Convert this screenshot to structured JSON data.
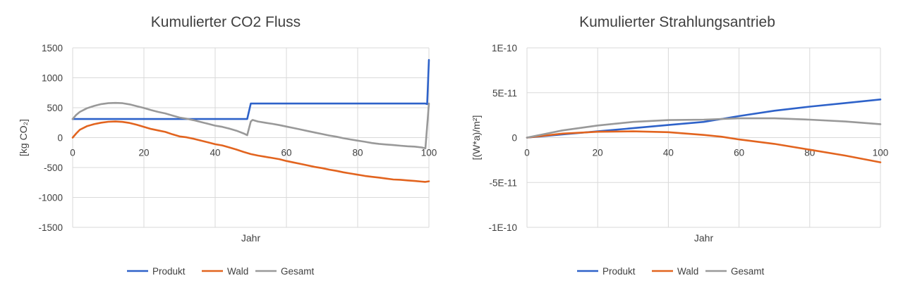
{
  "chart_data": [
    {
      "type": "line",
      "title": "Kumulierter CO2 Fluss",
      "xlabel": "Jahr",
      "ylabel": "[kg CO₂]",
      "xlim": [
        0,
        100
      ],
      "ylim": [
        -1500,
        1500
      ],
      "x_ticks": [
        0,
        20,
        40,
        60,
        80,
        100
      ],
      "x_tick_labels": [
        "0",
        "20",
        "40",
        "60",
        "80",
        "100"
      ],
      "y_ticks": [
        1500,
        1000,
        500,
        0,
        -500,
        -1000,
        -1500
      ],
      "y_tick_labels": [
        "1500",
        "1000",
        "500",
        "0",
        "-500",
        "-1000",
        "-1500"
      ],
      "grid": true,
      "legend_position": "bottom",
      "series": [
        {
          "name": "Produkt",
          "color": "#2e62c9",
          "points": [
            [
              0,
              310
            ],
            [
              48.5,
              310
            ],
            [
              49,
              310
            ],
            [
              50,
              570
            ],
            [
              99,
              570
            ],
            [
              99.5,
              560
            ],
            [
              100,
              1300
            ]
          ]
        },
        {
          "name": "Wald",
          "color": "#e2641f",
          "points": [
            [
              0,
              0
            ],
            [
              1,
              70
            ],
            [
              2,
              130
            ],
            [
              4,
              190
            ],
            [
              6,
              225
            ],
            [
              8,
              250
            ],
            [
              10,
              265
            ],
            [
              12,
              270
            ],
            [
              14,
              262
            ],
            [
              16,
              245
            ],
            [
              18,
              215
            ],
            [
              20,
              180
            ],
            [
              22,
              145
            ],
            [
              24,
              120
            ],
            [
              26,
              95
            ],
            [
              28,
              55
            ],
            [
              30,
              20
            ],
            [
              32,
              5
            ],
            [
              34,
              -20
            ],
            [
              36,
              -50
            ],
            [
              38,
              -80
            ],
            [
              40,
              -110
            ],
            [
              42,
              -130
            ],
            [
              44,
              -165
            ],
            [
              46,
              -200
            ],
            [
              48,
              -240
            ],
            [
              50,
              -275
            ],
            [
              52,
              -300
            ],
            [
              54,
              -320
            ],
            [
              56,
              -340
            ],
            [
              58,
              -360
            ],
            [
              60,
              -390
            ],
            [
              62,
              -415
            ],
            [
              64,
              -440
            ],
            [
              66,
              -465
            ],
            [
              68,
              -490
            ],
            [
              70,
              -510
            ],
            [
              72,
              -535
            ],
            [
              74,
              -555
            ],
            [
              76,
              -580
            ],
            [
              78,
              -600
            ],
            [
              80,
              -620
            ],
            [
              82,
              -640
            ],
            [
              84,
              -655
            ],
            [
              86,
              -668
            ],
            [
              88,
              -685
            ],
            [
              90,
              -700
            ],
            [
              92,
              -705
            ],
            [
              94,
              -715
            ],
            [
              96,
              -725
            ],
            [
              98,
              -735
            ],
            [
              99,
              -740
            ],
            [
              100,
              -730
            ]
          ]
        },
        {
          "name": "Gesamt",
          "color": "#999999",
          "points": [
            [
              0,
              310
            ],
            [
              1,
              380
            ],
            [
              2,
              430
            ],
            [
              4,
              490
            ],
            [
              6,
              530
            ],
            [
              8,
              560
            ],
            [
              10,
              575
            ],
            [
              12,
              580
            ],
            [
              14,
              575
            ],
            [
              16,
              555
            ],
            [
              18,
              525
            ],
            [
              20,
              495
            ],
            [
              22,
              460
            ],
            [
              24,
              430
            ],
            [
              26,
              405
            ],
            [
              28,
              370
            ],
            [
              30,
              335
            ],
            [
              32,
              315
            ],
            [
              34,
              290
            ],
            [
              36,
              260
            ],
            [
              38,
              230
            ],
            [
              40,
              200
            ],
            [
              42,
              180
            ],
            [
              44,
              150
            ],
            [
              46,
              115
            ],
            [
              48,
              70
            ],
            [
              49,
              40
            ],
            [
              50,
              270
            ],
            [
              50.5,
              295
            ],
            [
              52,
              270
            ],
            [
              54,
              250
            ],
            [
              56,
              230
            ],
            [
              58,
              210
            ],
            [
              60,
              185
            ],
            [
              62,
              160
            ],
            [
              64,
              135
            ],
            [
              66,
              110
            ],
            [
              68,
              85
            ],
            [
              70,
              60
            ],
            [
              72,
              35
            ],
            [
              74,
              15
            ],
            [
              76,
              -10
            ],
            [
              78,
              -30
            ],
            [
              80,
              -50
            ],
            [
              82,
              -70
            ],
            [
              84,
              -90
            ],
            [
              86,
              -105
            ],
            [
              88,
              -115
            ],
            [
              90,
              -125
            ],
            [
              92,
              -135
            ],
            [
              94,
              -145
            ],
            [
              96,
              -150
            ],
            [
              98,
              -165
            ],
            [
              99,
              -180
            ],
            [
              100,
              570
            ]
          ]
        }
      ]
    },
    {
      "type": "line",
      "title": "Kumulierter Strahlungsantrieb",
      "xlabel": "Jahr",
      "ylabel": "[(W*a)/m²]",
      "xlim": [
        0,
        100
      ],
      "ylim": [
        -1e-10,
        1e-10
      ],
      "x_ticks": [
        0,
        20,
        40,
        60,
        80,
        100
      ],
      "x_tick_labels": [
        "0",
        "20",
        "40",
        "60",
        "80",
        "100"
      ],
      "y_ticks": [
        1e-10,
        5e-11,
        0,
        -5e-11,
        -1e-10
      ],
      "y_tick_labels": [
        "1E-10",
        "5E-11",
        "0",
        "-5E-11",
        "-1E-10"
      ],
      "grid": true,
      "legend_position": "bottom",
      "series": [
        {
          "name": "Produkt",
          "color": "#2e62c9",
          "points": [
            [
              0,
              0
            ],
            [
              10,
              3.5e-12
            ],
            [
              20,
              7e-12
            ],
            [
              30,
              1.05e-11
            ],
            [
              40,
              1.4e-11
            ],
            [
              50,
              1.75e-11
            ],
            [
              60,
              2.4e-11
            ],
            [
              70,
              3e-11
            ],
            [
              80,
              3.45e-11
            ],
            [
              90,
              3.85e-11
            ],
            [
              100,
              4.25e-11
            ]
          ]
        },
        {
          "name": "Wald",
          "color": "#e2641f",
          "points": [
            [
              0,
              0
            ],
            [
              10,
              4.5e-12
            ],
            [
              20,
              6.5e-12
            ],
            [
              30,
              7e-12
            ],
            [
              40,
              6e-12
            ],
            [
              50,
              3e-12
            ],
            [
              55,
              1e-12
            ],
            [
              60,
              -2e-12
            ],
            [
              70,
              -7e-12
            ],
            [
              80,
              -1.35e-11
            ],
            [
              90,
              -2e-11
            ],
            [
              100,
              -2.75e-11
            ]
          ]
        },
        {
          "name": "Gesamt",
          "color": "#999999",
          "points": [
            [
              0,
              0
            ],
            [
              10,
              8e-12
            ],
            [
              20,
              1.35e-11
            ],
            [
              30,
              1.75e-11
            ],
            [
              40,
              1.95e-11
            ],
            [
              50,
              2e-11
            ],
            [
              60,
              2.15e-11
            ],
            [
              70,
              2.15e-11
            ],
            [
              80,
              2e-11
            ],
            [
              90,
              1.8e-11
            ],
            [
              100,
              1.5e-11
            ]
          ]
        }
      ]
    }
  ]
}
